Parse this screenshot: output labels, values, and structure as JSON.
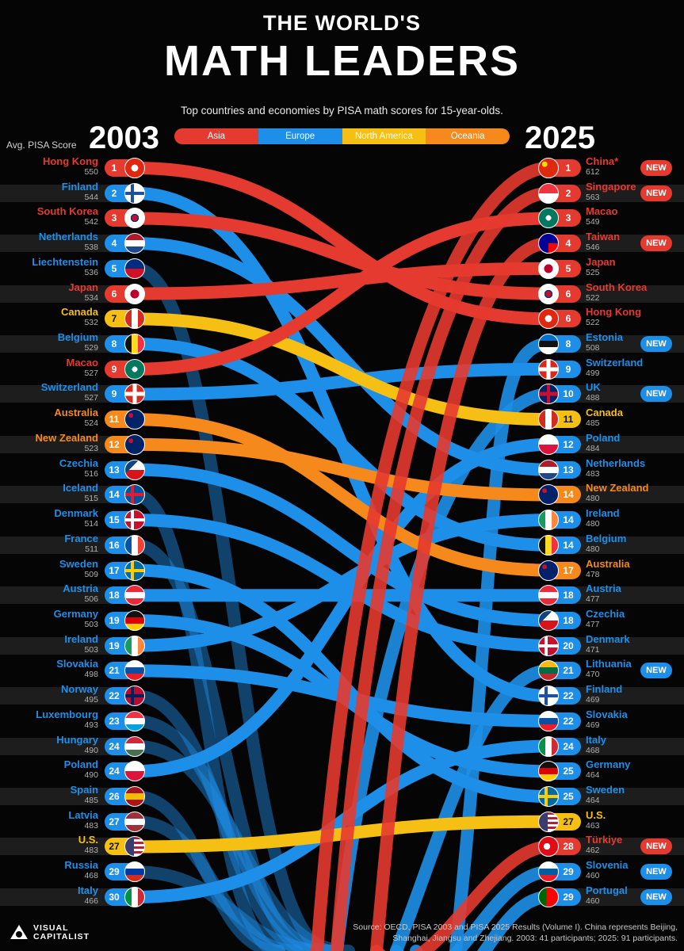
{
  "header": {
    "title_line1": "THE WORLD'S",
    "title_line2": "MATH LEADERS",
    "subtitle": "Top countries and economies by PISA math scores for 15-year-olds.",
    "year_left": "2003",
    "year_right": "2025",
    "avg_label": "Avg. PISA Score"
  },
  "colors": {
    "Asia": "#e53a2f",
    "Europe": "#1e8fe8",
    "North America": "#f6bf14",
    "Oceania": "#f5891b",
    "badge": "#e53a2f"
  },
  "legend": [
    {
      "label": "Asia",
      "color": "#e53a2f"
    },
    {
      "label": "Europe",
      "color": "#1e8fe8"
    },
    {
      "label": "North America",
      "color": "#f6bf14"
    },
    {
      "label": "Oceania",
      "color": "#f5891b"
    }
  ],
  "chart_data": {
    "type": "bump",
    "series_left": [
      {
        "country": "Hong Kong",
        "rank": "1",
        "score": "550",
        "region": "Asia",
        "flag": "hong-kong"
      },
      {
        "country": "Finland",
        "rank": "2",
        "score": "544",
        "region": "Europe",
        "flag": "finland"
      },
      {
        "country": "South Korea",
        "rank": "3",
        "score": "542",
        "region": "Asia",
        "flag": "south-korea"
      },
      {
        "country": "Netherlands",
        "rank": "4",
        "score": "538",
        "region": "Europe",
        "flag": "netherlands"
      },
      {
        "country": "Liechtenstein",
        "rank": "5",
        "score": "536",
        "region": "Europe",
        "flag": "liechtenstein"
      },
      {
        "country": "Japan",
        "rank": "6",
        "score": "534",
        "region": "Asia",
        "flag": "japan"
      },
      {
        "country": "Canada",
        "rank": "7",
        "score": "532",
        "region": "North America",
        "flag": "canada"
      },
      {
        "country": "Belgium",
        "rank": "8",
        "score": "529",
        "region": "Europe",
        "flag": "belgium"
      },
      {
        "country": "Macao",
        "rank": "9",
        "score": "527",
        "region": "Asia",
        "flag": "macao"
      },
      {
        "country": "Switzerland",
        "rank": "9",
        "score": "527",
        "region": "Europe",
        "flag": "switzerland"
      },
      {
        "country": "Australia",
        "rank": "11",
        "score": "524",
        "region": "Oceania",
        "flag": "australia"
      },
      {
        "country": "New Zealand",
        "rank": "12",
        "score": "523",
        "region": "Oceania",
        "flag": "new-zealand"
      },
      {
        "country": "Czechia",
        "rank": "13",
        "score": "516",
        "region": "Europe",
        "flag": "czechia"
      },
      {
        "country": "Iceland",
        "rank": "14",
        "score": "515",
        "region": "Europe",
        "flag": "iceland"
      },
      {
        "country": "Denmark",
        "rank": "15",
        "score": "514",
        "region": "Europe",
        "flag": "denmark"
      },
      {
        "country": "France",
        "rank": "16",
        "score": "511",
        "region": "Europe",
        "flag": "france"
      },
      {
        "country": "Sweden",
        "rank": "17",
        "score": "509",
        "region": "Europe",
        "flag": "sweden"
      },
      {
        "country": "Austria",
        "rank": "18",
        "score": "506",
        "region": "Europe",
        "flag": "austria"
      },
      {
        "country": "Germany",
        "rank": "19",
        "score": "503",
        "region": "Europe",
        "flag": "germany"
      },
      {
        "country": "Ireland",
        "rank": "19",
        "score": "503",
        "region": "Europe",
        "flag": "ireland"
      },
      {
        "country": "Slovakia",
        "rank": "21",
        "score": "498",
        "region": "Europe",
        "flag": "slovakia"
      },
      {
        "country": "Norway",
        "rank": "22",
        "score": "495",
        "region": "Europe",
        "flag": "norway"
      },
      {
        "country": "Luxembourg",
        "rank": "23",
        "score": "493",
        "region": "Europe",
        "flag": "luxembourg"
      },
      {
        "country": "Hungary",
        "rank": "24",
        "score": "490",
        "region": "Europe",
        "flag": "hungary"
      },
      {
        "country": "Poland",
        "rank": "24",
        "score": "490",
        "region": "Europe",
        "flag": "poland"
      },
      {
        "country": "Spain",
        "rank": "26",
        "score": "485",
        "region": "Europe",
        "flag": "spain"
      },
      {
        "country": "Latvia",
        "rank": "27",
        "score": "483",
        "region": "Europe",
        "flag": "latvia"
      },
      {
        "country": "U.S.",
        "rank": "27",
        "score": "483",
        "region": "North America",
        "flag": "us"
      },
      {
        "country": "Russia",
        "rank": "29",
        "score": "468",
        "region": "Europe",
        "flag": "russia"
      },
      {
        "country": "Italy",
        "rank": "30",
        "score": "466",
        "region": "Europe",
        "flag": "italy"
      }
    ],
    "series_right": [
      {
        "country": "China*",
        "rank": "1",
        "score": "612",
        "region": "Asia",
        "flag": "china",
        "new": true
      },
      {
        "country": "Singapore",
        "rank": "2",
        "score": "563",
        "region": "Asia",
        "flag": "singapore",
        "new": true
      },
      {
        "country": "Macao",
        "rank": "3",
        "score": "549",
        "region": "Asia",
        "flag": "macao",
        "new": false
      },
      {
        "country": "Taiwan",
        "rank": "4",
        "score": "546",
        "region": "Asia",
        "flag": "taiwan",
        "new": true
      },
      {
        "country": "Japan",
        "rank": "5",
        "score": "525",
        "region": "Asia",
        "flag": "japan",
        "new": false
      },
      {
        "country": "South Korea",
        "rank": "6",
        "score": "522",
        "region": "Asia",
        "flag": "south-korea",
        "new": false
      },
      {
        "country": "Hong Kong",
        "rank": "6",
        "score": "522",
        "region": "Asia",
        "flag": "hong-kong",
        "new": false
      },
      {
        "country": "Estonia",
        "rank": "8",
        "score": "508",
        "region": "Europe",
        "flag": "estonia",
        "new": true
      },
      {
        "country": "Switzerland",
        "rank": "9",
        "score": "499",
        "region": "Europe",
        "flag": "switzerland",
        "new": false
      },
      {
        "country": "UK",
        "rank": "10",
        "score": "488",
        "region": "Europe",
        "flag": "uk",
        "new": true
      },
      {
        "country": "Canada",
        "rank": "11",
        "score": "485",
        "region": "North America",
        "flag": "canada",
        "new": false
      },
      {
        "country": "Poland",
        "rank": "12",
        "score": "484",
        "region": "Europe",
        "flag": "poland",
        "new": false
      },
      {
        "country": "Netherlands",
        "rank": "13",
        "score": "483",
        "region": "Europe",
        "flag": "netherlands",
        "new": false
      },
      {
        "country": "New Zealand",
        "rank": "14",
        "score": "480",
        "region": "Oceania",
        "flag": "new-zealand",
        "new": false
      },
      {
        "country": "Ireland",
        "rank": "14",
        "score": "480",
        "region": "Europe",
        "flag": "ireland",
        "new": false
      },
      {
        "country": "Belgium",
        "rank": "14",
        "score": "480",
        "region": "Europe",
        "flag": "belgium",
        "new": false
      },
      {
        "country": "Australia",
        "rank": "17",
        "score": "478",
        "region": "Oceania",
        "flag": "australia",
        "new": false
      },
      {
        "country": "Austria",
        "rank": "18",
        "score": "477",
        "region": "Europe",
        "flag": "austria",
        "new": false
      },
      {
        "country": "Czechia",
        "rank": "18",
        "score": "477",
        "region": "Europe",
        "flag": "czechia",
        "new": false
      },
      {
        "country": "Denmark",
        "rank": "20",
        "score": "471",
        "region": "Europe",
        "flag": "denmark",
        "new": false
      },
      {
        "country": "Lithuania",
        "rank": "21",
        "score": "470",
        "region": "Europe",
        "flag": "lithuania",
        "new": true
      },
      {
        "country": "Finland",
        "rank": "22",
        "score": "469",
        "region": "Europe",
        "flag": "finland",
        "new": false
      },
      {
        "country": "Slovakia",
        "rank": "22",
        "score": "469",
        "region": "Europe",
        "flag": "slovakia",
        "new": false
      },
      {
        "country": "Italy",
        "rank": "24",
        "score": "468",
        "region": "Europe",
        "flag": "italy",
        "new": false
      },
      {
        "country": "Germany",
        "rank": "25",
        "score": "464",
        "region": "Europe",
        "flag": "germany",
        "new": false
      },
      {
        "country": "Sweden",
        "rank": "25",
        "score": "464",
        "region": "Europe",
        "flag": "sweden",
        "new": false
      },
      {
        "country": "U.S.",
        "rank": "27",
        "score": "463",
        "region": "North America",
        "flag": "us",
        "new": false
      },
      {
        "country": "Türkiye",
        "rank": "28",
        "score": "462",
        "region": "Asia",
        "flag": "turkiye",
        "new": true
      },
      {
        "country": "Slovenia",
        "rank": "29",
        "score": "460",
        "region": "Europe",
        "flag": "slovenia",
        "new": true
      },
      {
        "country": "Portugal",
        "rank": "29",
        "score": "460",
        "region": "Europe",
        "flag": "portugal",
        "new": true
      }
    ],
    "new_label": "NEW"
  },
  "footer": {
    "logo_line1": "VISUAL",
    "logo_line2": "CAPITALIST",
    "source": "Source: OECD, PISA 2003 and PISA 2025 Results (Volume I). China represents Beijing, Shanghai, Jiangsu and Zhejiang. 2003: 41 participants; 2025: 91 participants."
  }
}
